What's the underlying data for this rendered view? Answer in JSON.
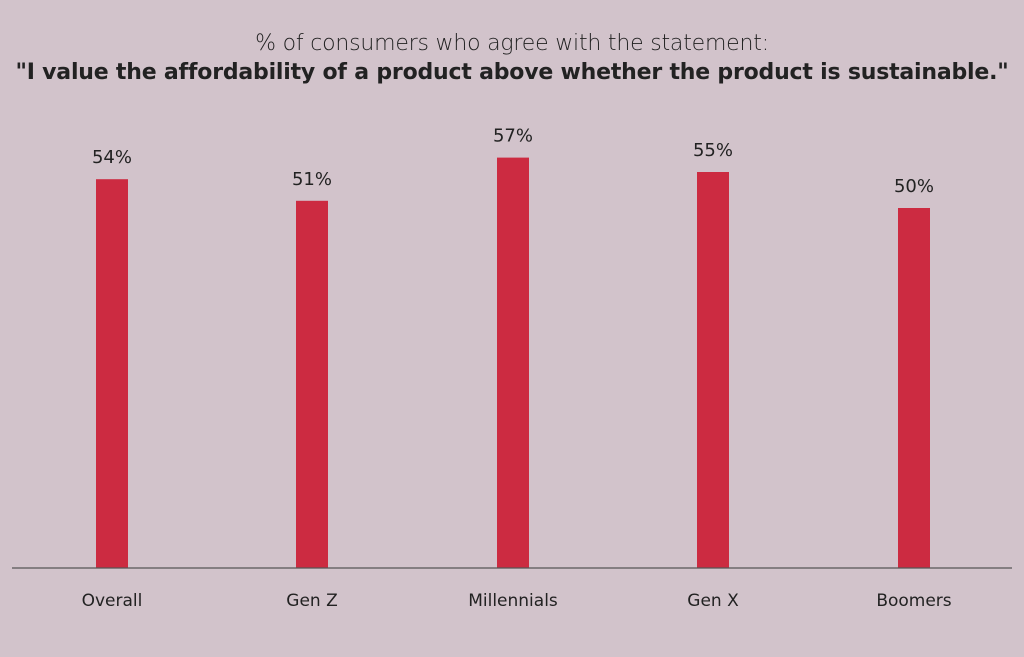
{
  "chart_data": {
    "type": "bar",
    "subtitle": "% of consumers who agree with the statement:",
    "title": "\"I value the affordability of a product above whether the product is sustainable.\"",
    "categories": [
      "Overall",
      "Gen Z",
      "Millennials",
      "Gen X",
      "Boomers"
    ],
    "values": [
      54,
      51,
      57,
      55,
      50
    ],
    "value_labels": [
      "54%",
      "51%",
      "57%",
      "55%",
      "50%"
    ],
    "ylim": [
      0,
      100
    ],
    "grid": false,
    "legend": "none",
    "bar_color": "#cc2b41",
    "axis_color": "#555555",
    "background_color": "#d2c3cb"
  }
}
